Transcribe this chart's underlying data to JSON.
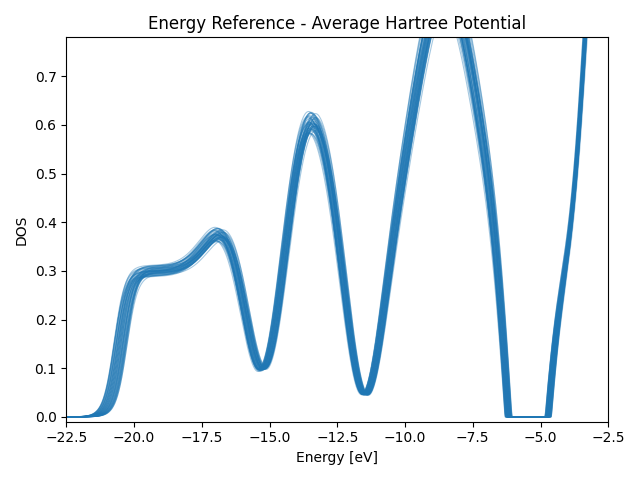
{
  "title": "Energy Reference - Average Hartree Potential",
  "xlabel": "Energy [eV]",
  "ylabel": "DOS",
  "xlim": [
    -22.5,
    -2.5
  ],
  "ylim": [
    -0.01,
    0.78
  ],
  "line_color": "#1f77b4",
  "line_alpha": 0.4,
  "line_width": 0.8,
  "n_curves": 50,
  "energy_min": -23.0,
  "energy_max": -2.0,
  "n_points": 800
}
